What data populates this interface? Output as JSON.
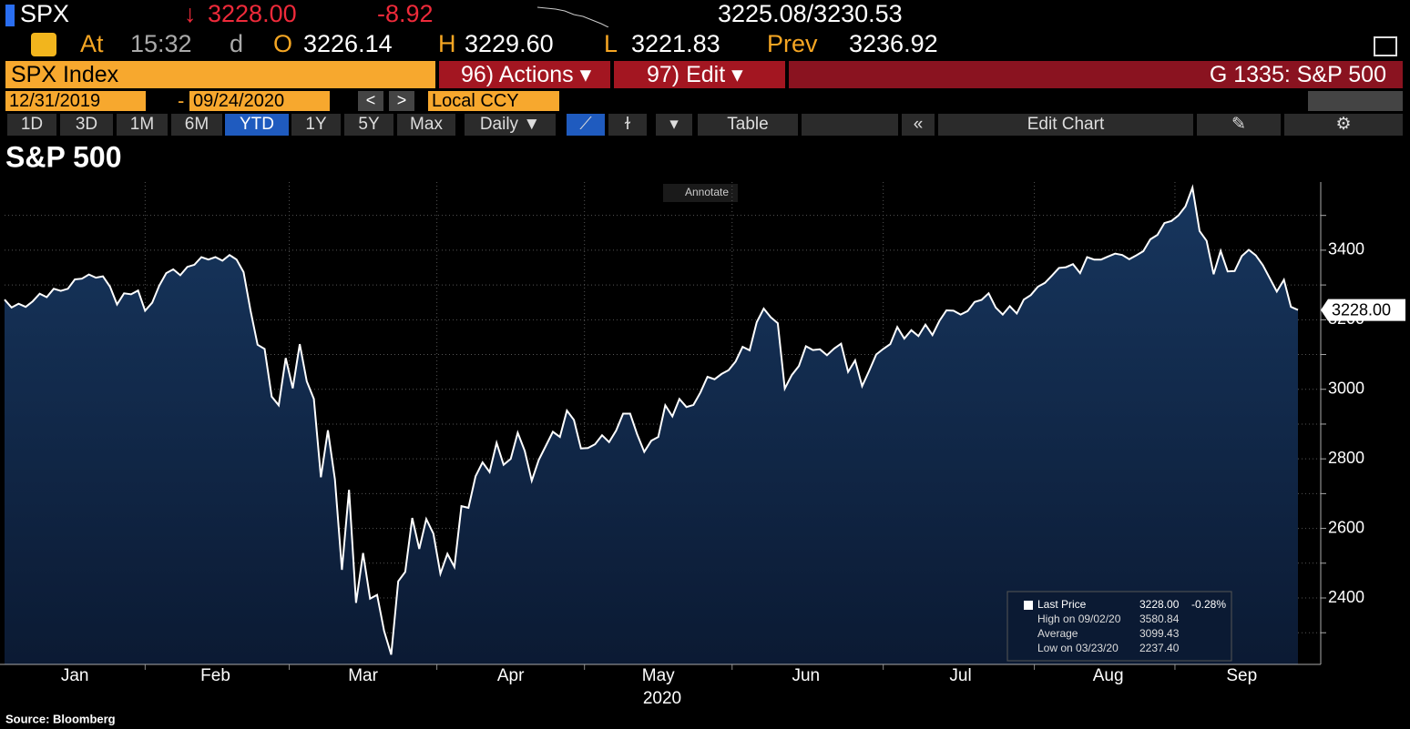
{
  "header": {
    "ticker": "SPX",
    "last": "3228.00",
    "change": "-8.92",
    "bid_ask": "3225.08/3230.53",
    "at_label": "At",
    "time": "15:32",
    "time_flag": "d",
    "open_label": "O",
    "open": "3226.14",
    "high_label": "H",
    "high": "3229.60",
    "low_label": "L",
    "low": "3221.83",
    "prev_label": "Prev",
    "prev": "3236.92"
  },
  "command_bar": {
    "security": "SPX Index",
    "actions": "96) Actions",
    "edit": "97) Edit",
    "page": "G 1335: S&P 500"
  },
  "date_bar": {
    "start": "12/31/2019",
    "end": "09/24/2020",
    "currency": "Local CCY"
  },
  "toolbar": {
    "ranges": [
      "1D",
      "3D",
      "1M",
      "6M",
      "YTD",
      "1Y",
      "5Y",
      "Max"
    ],
    "active_range": "YTD",
    "frequency": "Daily",
    "table": "Table",
    "edit_chart": "Edit Chart"
  },
  "chart_data": {
    "type": "line",
    "title": "S&P 500",
    "annotate": "Annotate",
    "x_label": "2020",
    "categories": [
      null,
      null,
      null,
      null,
      null,
      null,
      null,
      null,
      null,
      null,
      "Jan",
      null,
      null,
      null,
      null,
      null,
      null,
      null,
      null,
      null,
      null,
      null,
      null,
      null,
      null,
      null,
      null,
      null,
      null,
      null,
      "Feb",
      null,
      null,
      null,
      null,
      null,
      null,
      null,
      null,
      null,
      null,
      null,
      null,
      null,
      null,
      null,
      null,
      null,
      null,
      null,
      null,
      "Mar",
      null,
      null,
      null,
      null,
      null,
      null,
      null,
      null,
      null,
      null,
      null,
      null,
      null,
      null,
      null,
      null,
      null,
      null,
      null,
      null,
      "Apr",
      null,
      null,
      null,
      null,
      null,
      null,
      null,
      null,
      null,
      null,
      null,
      null,
      null,
      null,
      null,
      null,
      null,
      null,
      null,
      null,
      "May",
      null,
      null,
      null,
      null,
      null,
      null,
      null,
      null,
      null,
      null,
      null,
      null,
      null,
      null,
      null,
      null,
      null,
      null,
      null,
      null,
      "Jun",
      null,
      null,
      null,
      null,
      null,
      null,
      null,
      null,
      null,
      null,
      null,
      null,
      null,
      null,
      null,
      null,
      null,
      null,
      null,
      null,
      null,
      "Jul",
      null,
      null,
      null,
      null,
      null,
      null,
      null,
      null,
      null,
      null,
      null,
      null,
      null,
      null,
      null,
      null,
      null,
      null,
      null,
      null,
      "Aug",
      null,
      null,
      null,
      null,
      null,
      null,
      null,
      null,
      null,
      null,
      null,
      null,
      null,
      null,
      null,
      null,
      null,
      null,
      "Sep",
      null,
      null,
      null,
      null,
      null,
      null,
      null,
      null
    ],
    "series": [
      {
        "name": "Last Price",
        "color": "#ffffff",
        "values": [
          3258,
          3235,
          3246,
          3237,
          3253,
          3275,
          3265,
          3289,
          3283,
          3289,
          3316,
          3318,
          3330,
          3321,
          3325,
          3295,
          3244,
          3276,
          3273,
          3284,
          3226,
          3249,
          3298,
          3334,
          3345,
          3328,
          3352,
          3358,
          3380,
          3373,
          3380,
          3370,
          3386,
          3373,
          3337,
          3226,
          3128,
          3116,
          2979,
          2954,
          3090,
          3003,
          3130,
          3023,
          2972,
          2747,
          2882,
          2741,
          2481,
          2711,
          2386,
          2529,
          2398,
          2409,
          2305,
          2237,
          2448,
          2475,
          2630,
          2541,
          2627,
          2585,
          2470,
          2527,
          2489,
          2664,
          2659,
          2750,
          2790,
          2762,
          2846,
          2783,
          2800,
          2875,
          2823,
          2737,
          2797,
          2837,
          2878,
          2863,
          2939,
          2912,
          2830,
          2831,
          2842,
          2868,
          2848,
          2881,
          2930,
          2930,
          2870,
          2820,
          2852,
          2863,
          2954,
          2922,
          2972,
          2949,
          2955,
          2991,
          3036,
          3029,
          3044,
          3055,
          3080,
          3122,
          3112,
          3193,
          3232,
          3207,
          3190,
          3002,
          3041,
          3067,
          3124,
          3113,
          3115,
          3098,
          3117,
          3131,
          3050,
          3083,
          3009,
          3053,
          3100,
          3116,
          3130,
          3179,
          3146,
          3170,
          3153,
          3186,
          3156,
          3197,
          3227,
          3226,
          3215,
          3225,
          3251,
          3257,
          3276,
          3235,
          3215,
          3239,
          3218,
          3258,
          3271,
          3295,
          3306,
          3327,
          3349,
          3351,
          3360,
          3334,
          3380,
          3373,
          3373,
          3382,
          3390,
          3386,
          3374,
          3385,
          3397,
          3431,
          3444,
          3478,
          3484,
          3500,
          3526,
          3580,
          3455,
          3427,
          3331,
          3398,
          3339,
          3340,
          3383,
          3401,
          3385,
          3357,
          3319,
          3281,
          3315,
          3237,
          3228
        ]
      }
    ],
    "last_label": "3228.00",
    "ylim": [
      2209,
      3596
    ],
    "yticks": [
      2400,
      2600,
      2800,
      3000,
      3200,
      3400
    ],
    "yticks_minor": [
      2300,
      2500,
      2700,
      2900,
      3100,
      3300,
      3500
    ],
    "grid": true,
    "stats": [
      {
        "value": "3228.00",
        "change": "-0.28%"
      },
      {
        "label": "High on 09/02/20",
        "value": "3580.84"
      },
      {
        "label": "Average",
        "value": "3099.43"
      },
      {
        "label": "Low on 03/23/20",
        "value": "2237.40"
      }
    ]
  },
  "source": "Source: Bloomberg"
}
